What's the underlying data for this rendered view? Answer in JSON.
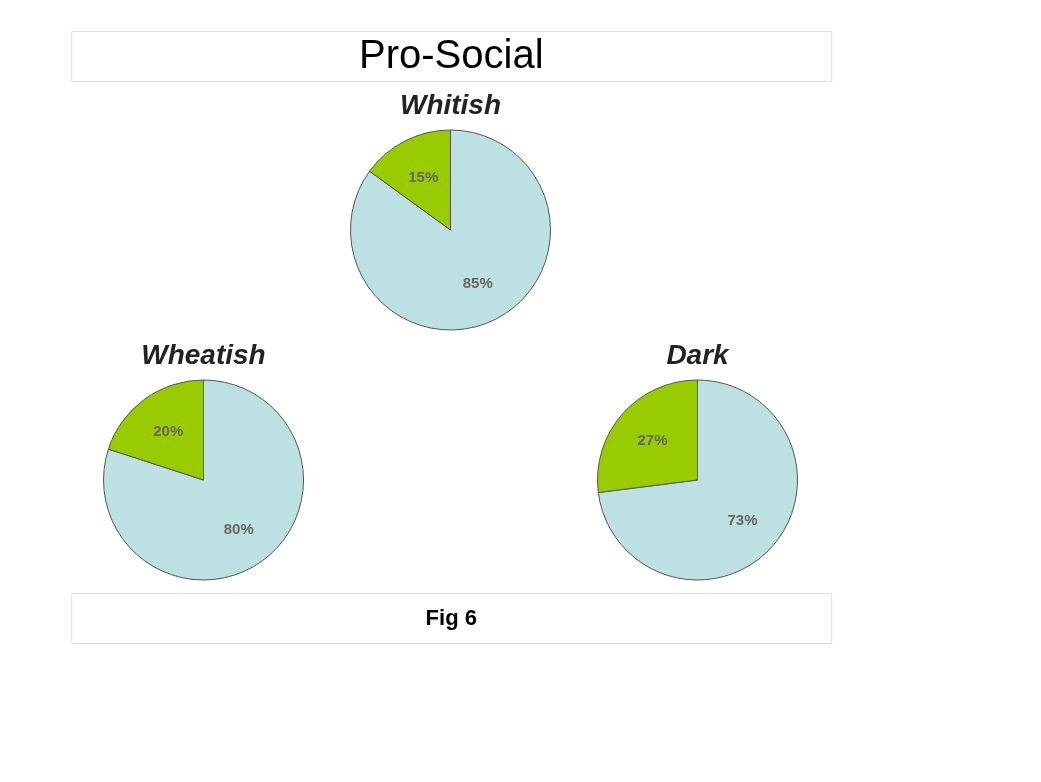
{
  "chart_data": [
    {
      "type": "pie",
      "title": "Whitish",
      "annotations": [
        "Pro-Social"
      ],
      "categories": [
        null,
        null
      ],
      "values": [
        85,
        15
      ],
      "colors": [
        "#bde0e3",
        "#99cc00"
      ],
      "value_labels": [
        "85%",
        "15%"
      ]
    },
    {
      "type": "pie",
      "title": "Wheatish",
      "categories": [
        null,
        null
      ],
      "values": [
        80,
        20
      ],
      "colors": [
        "#bde0e3",
        "#99cc00"
      ],
      "value_labels": [
        "80%",
        "20%"
      ]
    },
    {
      "type": "pie",
      "title": "Dark",
      "annotations": [
        "Fig 6"
      ],
      "categories": [
        null,
        null
      ],
      "values": [
        73,
        27
      ],
      "colors": [
        "#bde0e3",
        "#99cc00"
      ],
      "value_labels": [
        "73%",
        "27%"
      ]
    }
  ]
}
